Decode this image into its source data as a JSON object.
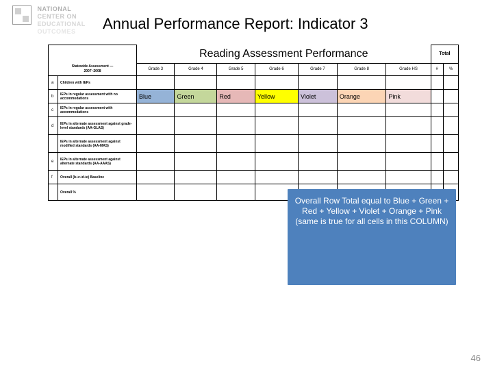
{
  "logo": {
    "l1": "NATIONAL",
    "l2": "CENTER ON",
    "l3": "EDUCATIONAL",
    "l4": "OUTCOMES"
  },
  "title": "Annual Performance Report: Indicator 3",
  "table_title": "Reading Assessment Performance",
  "total_label": "Total",
  "statewide": {
    "l1": "Statewide Assessment —",
    "l2": "2007–2008"
  },
  "grades": [
    "Grade 3",
    "Grade 4",
    "Grade 5",
    "Grade 6",
    "Grade 7",
    "Grade 8",
    "Grade HS"
  ],
  "totcols": [
    "#",
    "%"
  ],
  "rows": {
    "a": {
      "k": "a",
      "lbl": "Children with IEPs"
    },
    "b": {
      "k": "b",
      "lbl": "IEPs in regular assessment with no accommodations"
    },
    "c": {
      "k": "c",
      "lbl": "IEPs in regular assessment with accommodations"
    },
    "d": {
      "k": "d",
      "lbl": "IEPs in alternate assessment against grade-level standards (AA-GLAS)"
    },
    "d2": {
      "k": "",
      "lbl": "IEPs in alternate assessment against modified standards (AA-MAS)"
    },
    "e": {
      "k": "e",
      "lbl": "IEPs in alternate assessment against alternate standards (AA-AAAS)"
    },
    "f": {
      "k": "f",
      "lbl": "Overall (b+c+d+e) Baseline"
    },
    "g": {
      "k": "",
      "lbl": "Overall %"
    }
  },
  "row_b_vals": [
    {
      "txt": "Blue",
      "bg": "#95b3d7"
    },
    {
      "txt": "Green",
      "bg": "#c4d79b"
    },
    {
      "txt": "Red",
      "bg": "#e6b8b7"
    },
    {
      "txt": "Yellow",
      "bg": "#ffff00"
    },
    {
      "txt": "Violet",
      "bg": "#ccc1da"
    },
    {
      "txt": "Orange",
      "bg": "#fcd5b5"
    },
    {
      "txt": "Pink",
      "bg": "#f2dcdb"
    }
  ],
  "callout": "Overall Row Total equal to Blue + Green + Red + Yellow + Violet + Orange + Pink\n(same is true for all cells in this COLUMN)",
  "pagenum": "46",
  "colors": {
    "callout_bg": "#4e81bd"
  }
}
